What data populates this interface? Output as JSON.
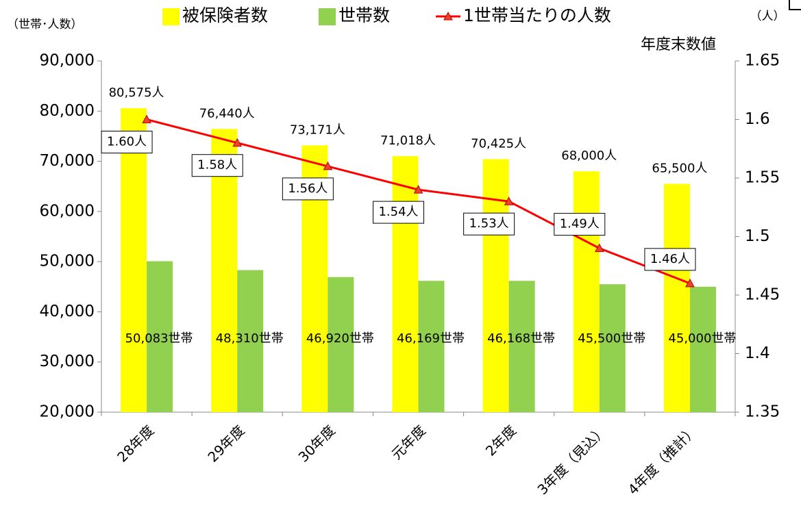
{
  "chart_data": {
    "type": "bar-line",
    "y_label": "（世帯･人数）",
    "y2_label": "（人）",
    "note": "年度末数値",
    "categories": [
      "28年度",
      "29年度",
      "30年度",
      "元年度",
      "2年度",
      "3年度（見込）",
      "4年度（推計）"
    ],
    "series": [
      {
        "name": "被保険者数",
        "color": "#ffff00",
        "type": "bar",
        "values": [
          80575,
          76440,
          73171,
          71018,
          70425,
          68000,
          65500
        ],
        "value_labels": [
          "80,575人",
          "76,440人",
          "73,171人",
          "71,018人",
          "70,425人",
          "68,000人",
          "65,500人"
        ]
      },
      {
        "name": "世帯数",
        "color": "#92d050",
        "type": "bar",
        "values": [
          50083,
          48310,
          46920,
          46169,
          46168,
          45500,
          45000
        ],
        "value_labels": [
          "50,083世帯",
          "48,310世帯",
          "46,920世帯",
          "46,169世帯",
          "46,168世帯",
          "45,500世帯",
          "45,000世帯"
        ]
      },
      {
        "name": "1世帯当たりの人数",
        "color": "#ff0000",
        "type": "line",
        "axis": "y2",
        "values": [
          1.6,
          1.58,
          1.56,
          1.54,
          1.53,
          1.49,
          1.46
        ],
        "value_labels": [
          "1.60人",
          "1.58人",
          "1.56人",
          "1.54人",
          "1.53人",
          "1.49人",
          "1.46人"
        ]
      }
    ],
    "ylim": [
      20000,
      90000
    ],
    "yticks": [
      {
        "value": 20000,
        "label": "20,000"
      },
      {
        "value": 30000,
        "label": "30,000"
      },
      {
        "value": 40000,
        "label": "40,000"
      },
      {
        "value": 50000,
        "label": "50,000"
      },
      {
        "value": 60000,
        "label": "60,000"
      },
      {
        "value": 70000,
        "label": "70,000"
      },
      {
        "value": 80000,
        "label": "80,000"
      },
      {
        "value": 90000,
        "label": "90,000"
      }
    ],
    "y2lim": [
      1.35,
      1.65
    ],
    "y2ticks": [
      1.35,
      1.4,
      1.45,
      1.5,
      1.55,
      1.6,
      1.65
    ]
  }
}
